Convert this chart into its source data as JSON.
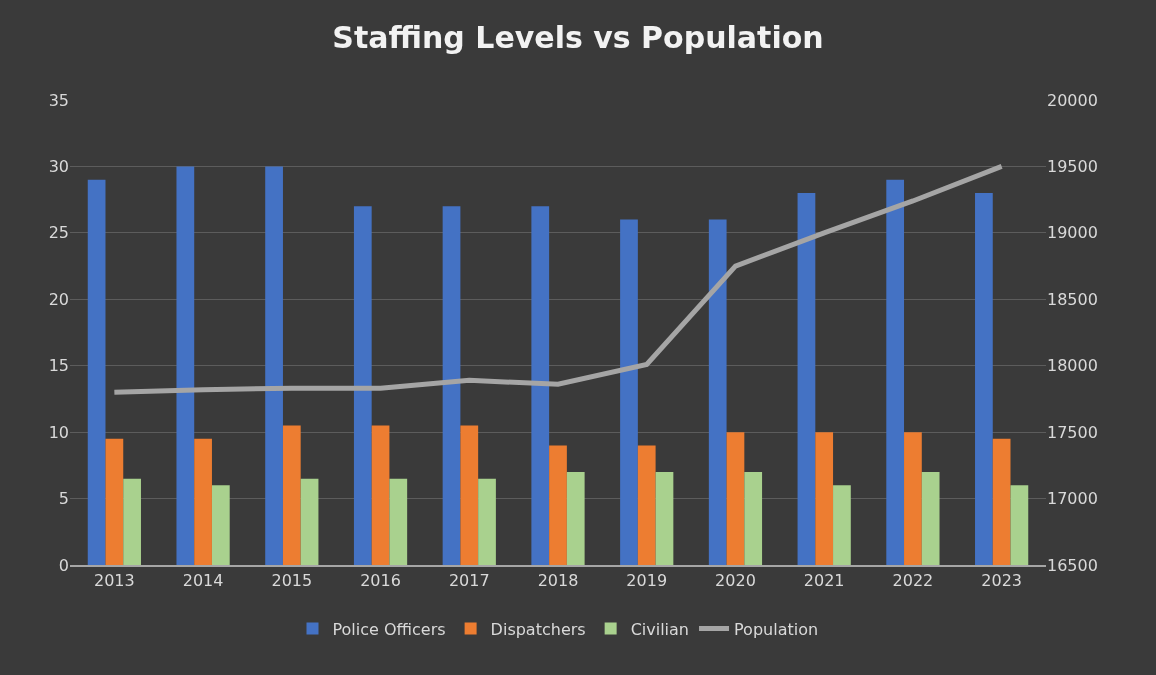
{
  "chart_data": {
    "type": "bar",
    "title": "Staffing Levels vs Population",
    "categories": [
      "2013",
      "2014",
      "2015",
      "2016",
      "2017",
      "2018",
      "2019",
      "2020",
      "2021",
      "2022",
      "2023"
    ],
    "series": [
      {
        "name": "Police Officers",
        "color": "#4472c4",
        "values": [
          29,
          30,
          30,
          27,
          27,
          27,
          26,
          26,
          28,
          29,
          28
        ]
      },
      {
        "name": "Dispatchers",
        "color": "#ed7d31",
        "values": [
          9.5,
          9.5,
          10.5,
          10.5,
          10.5,
          9,
          9,
          10,
          10,
          10,
          9.5
        ]
      },
      {
        "name": "Civilian",
        "color": "#a9d18e",
        "values": [
          6.5,
          6,
          6.5,
          6.5,
          6.5,
          7,
          7,
          7,
          6,
          7,
          6
        ]
      },
      {
        "name": "Population",
        "type": "line",
        "axis": "y2",
        "color": "#a5a5a5",
        "marker": "none",
        "line_style": "solid",
        "values": [
          17800,
          17820,
          17830,
          17830,
          17890,
          17860,
          18010,
          18750,
          19000,
          19240,
          19500
        ]
      }
    ],
    "ylim": [
      0,
      35
    ],
    "yticks": [
      0,
      5,
      10,
      15,
      20,
      25,
      30,
      35
    ],
    "y2lim": [
      16500,
      20000
    ],
    "y2ticks": [
      16500,
      17000,
      17500,
      18000,
      18500,
      19000,
      19500,
      20000
    ],
    "grid": "y",
    "legend": "bottom"
  }
}
